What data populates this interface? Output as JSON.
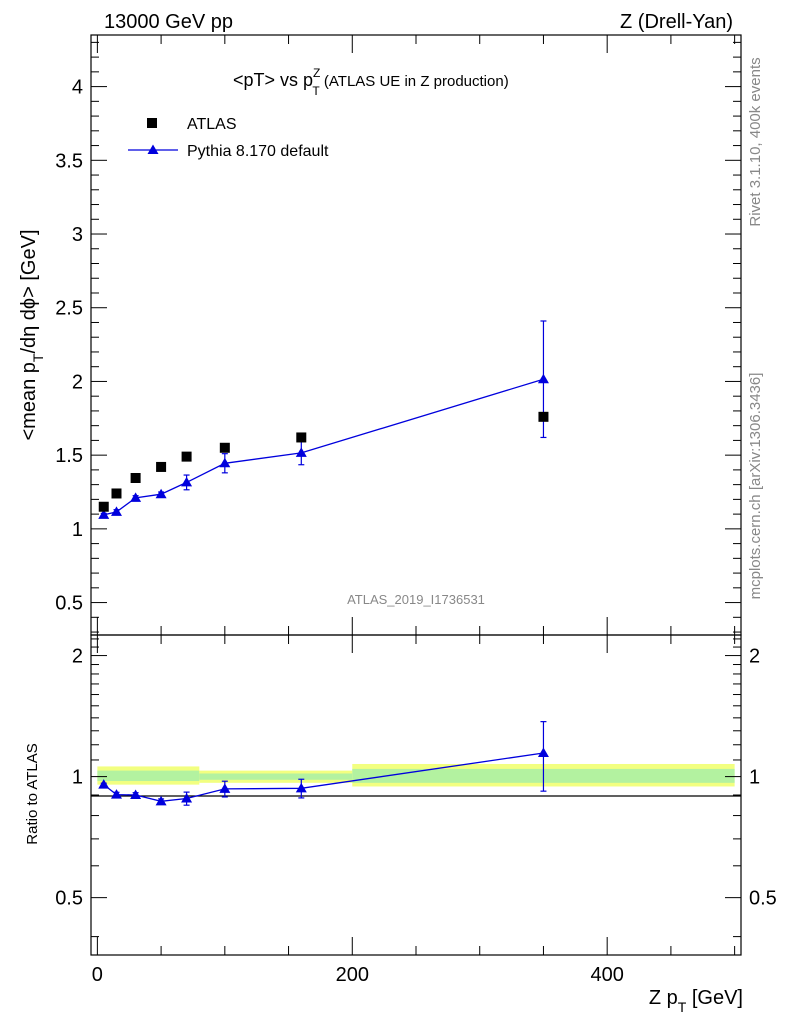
{
  "header": {
    "left": "13000 GeV pp",
    "right": "Z (Drell-Yan)"
  },
  "side_labels": {
    "rivet": "Rivet 3.1.10,  400k events",
    "mcplots": "mcplots.cern.ch [arXiv:1306.3436]"
  },
  "chart_data": [
    {
      "type": "scatter",
      "panel": "main",
      "title": {
        "prefix": "<pT> vs p",
        "sup": "Z",
        "sub": "T",
        "suffix": " (ATLAS UE in Z production)"
      },
      "ylabel": {
        "a": "<mean p",
        "sub": "T",
        "b": "/dη dϕ> [GeV]"
      },
      "watermark": "ATLAS_2019_I1736531",
      "xlim": [
        -5,
        505
      ],
      "ylim": [
        0.28,
        4.35
      ],
      "y_ticks": [
        "0.5",
        "1",
        "1.5",
        "2",
        "2.5",
        "3",
        "3.5",
        "4"
      ],
      "y_tick_values": [
        0.5,
        1,
        1.5,
        2,
        2.5,
        3,
        3.5,
        4
      ],
      "legend_position": "top-left",
      "series": [
        {
          "name": "ATLAS",
          "marker": "square",
          "color": "#000000",
          "x": [
            5,
            15,
            30,
            50,
            70,
            100,
            160,
            350
          ],
          "y": [
            1.15,
            1.24,
            1.345,
            1.42,
            1.49,
            1.55,
            1.62,
            1.76
          ]
        },
        {
          "name": "Pythia 8.170 default",
          "marker": "triangle",
          "color": "#0000dd",
          "x": [
            5,
            15,
            30,
            50,
            70,
            100,
            160,
            350
          ],
          "y": [
            1.095,
            1.115,
            1.21,
            1.235,
            1.315,
            1.445,
            1.515,
            2.015
          ],
          "yerr": [
            0.01,
            0.015,
            0.015,
            0.015,
            0.05,
            0.065,
            0.08,
            0.395
          ]
        }
      ]
    },
    {
      "type": "line",
      "panel": "ratio",
      "ylabel": "Ratio to ATLAS",
      "xlabel": {
        "a": "Z p",
        "sub": "T",
        "b": " [GeV]"
      },
      "xlim": [
        -5,
        505
      ],
      "ylim": [
        0.36,
        2.25
      ],
      "y_scale": "log",
      "y_ticks": [
        "0.5",
        "1",
        "2"
      ],
      "y_tick_values": [
        0.5,
        1,
        2
      ],
      "x_ticks": [
        "0",
        "200",
        "400"
      ],
      "x_tick_values": [
        0,
        200,
        400
      ],
      "uncertainty_band": {
        "colors": {
          "outer": "#f2ff80",
          "inner": "#b3f2a0"
        },
        "segments": [
          {
            "x0": 0,
            "x1": 80,
            "outer": [
              0.955,
              1.06
            ],
            "inner": [
              0.975,
              1.035
            ]
          },
          {
            "x0": 80,
            "x1": 200,
            "outer": [
              0.965,
              1.035
            ],
            "inner": [
              0.982,
              1.018
            ]
          },
          {
            "x0": 200,
            "x1": 500,
            "outer": [
              0.945,
              1.075
            ],
            "inner": [
              0.965,
              1.045
            ]
          }
        ]
      },
      "series": [
        {
          "name": "Pythia 8.170 default",
          "color": "#0000dd",
          "x": [
            5,
            15,
            30,
            50,
            70,
            100,
            160,
            350
          ],
          "y": [
            0.955,
            0.902,
            0.9,
            0.868,
            0.882,
            0.932,
            0.935,
            1.145
          ],
          "yerr": [
            0.008,
            0.012,
            0.012,
            0.012,
            0.033,
            0.042,
            0.05,
            0.225
          ]
        }
      ]
    }
  ]
}
